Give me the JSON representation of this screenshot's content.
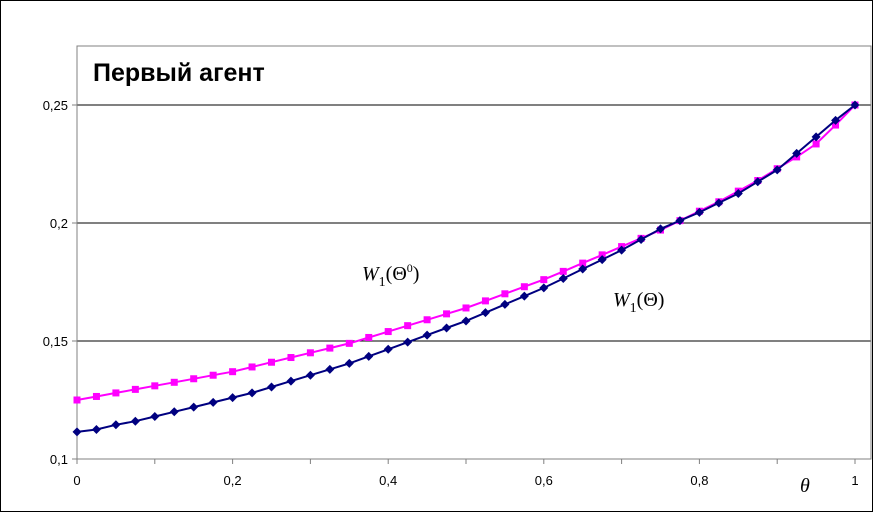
{
  "chart_data": {
    "type": "line",
    "title": "Первый агент",
    "xlabel": "θ",
    "ylabel": "",
    "xlim": [
      0,
      1
    ],
    "ylim": [
      0.1,
      0.275
    ],
    "xticks": [
      0,
      0.2,
      0.4,
      0.6,
      0.8,
      1
    ],
    "xtick_labels": [
      "0",
      "0,2",
      "0,4",
      "0,6",
      "0,8",
      "1"
    ],
    "yticks": [
      0.1,
      0.15,
      0.2,
      0.25
    ],
    "ytick_labels": [
      "0,1",
      "0,15",
      "0,2",
      "0,25"
    ],
    "grid": "horizontal",
    "series": [
      {
        "color": "#ff00ff",
        "marker": "square",
        "annotation": {
          "base": "W",
          "sub": "1",
          "arg": "Θ",
          "sup": "0"
        },
        "x": [
          0,
          0.025,
          0.05,
          0.075,
          0.1,
          0.125,
          0.15,
          0.175,
          0.2,
          0.225,
          0.25,
          0.275,
          0.3,
          0.325,
          0.35,
          0.375,
          0.4,
          0.425,
          0.45,
          0.475,
          0.5,
          0.525,
          0.55,
          0.575,
          0.6,
          0.625,
          0.65,
          0.675,
          0.7,
          0.725,
          0.75,
          0.775,
          0.8,
          0.825,
          0.85,
          0.875,
          0.9,
          0.925,
          0.95,
          0.975,
          1
        ],
        "y": [
          0.125,
          0.1265,
          0.128,
          0.1295,
          0.131,
          0.1325,
          0.134,
          0.1355,
          0.137,
          0.139,
          0.141,
          0.143,
          0.145,
          0.147,
          0.149,
          0.1515,
          0.154,
          0.1565,
          0.159,
          0.1615,
          0.164,
          0.167,
          0.17,
          0.173,
          0.176,
          0.1795,
          0.183,
          0.1865,
          0.19,
          0.1935,
          0.197,
          0.201,
          0.205,
          0.209,
          0.2135,
          0.218,
          0.223,
          0.228,
          0.2335,
          0.2415,
          0.25
        ]
      },
      {
        "color": "#000080",
        "marker": "diamond",
        "annotation": {
          "base": "W",
          "sub": "1",
          "arg": "Θ",
          "sup": ""
        },
        "x": [
          0,
          0.025,
          0.05,
          0.075,
          0.1,
          0.125,
          0.15,
          0.175,
          0.2,
          0.225,
          0.25,
          0.275,
          0.3,
          0.325,
          0.35,
          0.375,
          0.4,
          0.425,
          0.45,
          0.475,
          0.5,
          0.525,
          0.55,
          0.575,
          0.6,
          0.625,
          0.65,
          0.675,
          0.7,
          0.725,
          0.75,
          0.775,
          0.8,
          0.825,
          0.85,
          0.875,
          0.9,
          0.925,
          0.95,
          0.975,
          1
        ],
        "y": [
          0.1115,
          0.1125,
          0.1145,
          0.116,
          0.118,
          0.12,
          0.122,
          0.124,
          0.126,
          0.128,
          0.1305,
          0.133,
          0.1355,
          0.138,
          0.1405,
          0.1435,
          0.1465,
          0.1495,
          0.1525,
          0.1555,
          0.1585,
          0.162,
          0.1655,
          0.169,
          0.1725,
          0.1765,
          0.1805,
          0.1845,
          0.1885,
          0.193,
          0.1975,
          0.201,
          0.2045,
          0.2085,
          0.2125,
          0.2175,
          0.2225,
          0.2295,
          0.2365,
          0.2435,
          0.25
        ]
      }
    ]
  }
}
